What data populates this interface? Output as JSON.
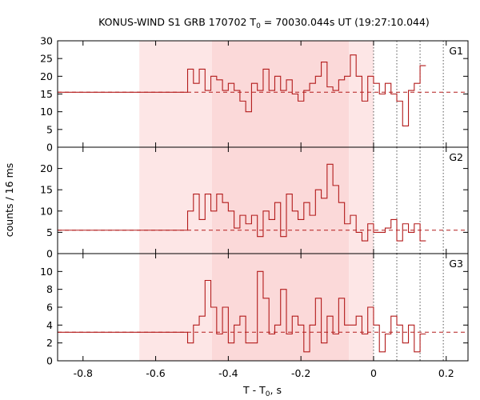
{
  "chart_data": {
    "type": "line",
    "title": "KONUS-WIND S1 GRB 170702 T",
    "title_sub": "0",
    "title_rest": " = 70030.044s UT (19:27:10.044)",
    "xlabel_main": "T - T",
    "xlabel_sub": "0",
    "xlabel_rest": ", s",
    "ylabel": "counts / 16 ms",
    "xlim": [
      -0.87,
      0.26
    ],
    "x_ticks": [
      -0.8,
      -0.6,
      -0.4,
      -0.2,
      0,
      0.2
    ],
    "x_tick_labels": [
      "-0.8",
      "-0.6",
      "-0.4",
      "-0.2",
      "0",
      "0.2"
    ],
    "shaded_regions": [
      {
        "from": -0.645,
        "to": -0.445,
        "color": "#fde6e6"
      },
      {
        "from": -0.445,
        "to": -0.068,
        "color": "#fbd9d9"
      },
      {
        "from": -0.068,
        "to": 0.0,
        "color": "#fde6e6"
      }
    ],
    "vertical_dotted_lines": [
      0.0,
      0.064,
      0.128,
      0.192
    ],
    "line_color": "#b31b1b",
    "panels": [
      {
        "name": "G1",
        "ylim": [
          0,
          30
        ],
        "y_ticks": [
          0,
          5,
          10,
          15,
          20,
          25,
          30
        ],
        "y_tick_labels": [
          "0",
          "5",
          "10",
          "15",
          "20",
          "25",
          "30"
        ],
        "background": 15.5,
        "pre_level": 15.5,
        "bin_start": -0.512,
        "bin_width": 0.016,
        "values": [
          22,
          18,
          22,
          16,
          20,
          19,
          16,
          18,
          16,
          13,
          10,
          18,
          16,
          22,
          16,
          20,
          16,
          19,
          15,
          13,
          16,
          18,
          20,
          24,
          17,
          16,
          19,
          20,
          26,
          20,
          13,
          20,
          18,
          15,
          18,
          15,
          13,
          6,
          16,
          18,
          23
        ]
      },
      {
        "name": "G2",
        "ylim": [
          0,
          25
        ],
        "y_ticks": [
          0,
          5,
          10,
          15,
          20
        ],
        "y_tick_labels": [
          "0",
          "5",
          "10",
          "15",
          "20"
        ],
        "background": 5.5,
        "pre_level": 5.5,
        "bin_start": -0.512,
        "bin_width": 0.016,
        "values": [
          10,
          14,
          8,
          14,
          10,
          14,
          12,
          10,
          6,
          9,
          7,
          9,
          4,
          10,
          8,
          12,
          4,
          14,
          10,
          8,
          12,
          9,
          15,
          13,
          21,
          16,
          12,
          7,
          9,
          5,
          3,
          7,
          5,
          5,
          6,
          8,
          3,
          7,
          5,
          7,
          3
        ]
      },
      {
        "name": "G3",
        "ylim": [
          0,
          12
        ],
        "y_ticks": [
          0,
          2,
          4,
          6,
          8,
          10
        ],
        "y_tick_labels": [
          "0",
          "2",
          "4",
          "6",
          "8",
          "10"
        ],
        "background": 3.2,
        "pre_level": 3.2,
        "bin_start": -0.512,
        "bin_width": 0.016,
        "values": [
          2,
          4,
          5,
          9,
          6,
          3,
          6,
          2,
          4,
          5,
          2,
          2,
          10,
          7,
          3,
          4,
          8,
          3,
          5,
          4,
          1,
          4,
          7,
          2,
          5,
          3,
          7,
          4,
          4,
          5,
          3,
          6,
          4,
          1,
          3,
          5,
          4,
          2,
          4,
          1,
          3
        ]
      }
    ]
  }
}
